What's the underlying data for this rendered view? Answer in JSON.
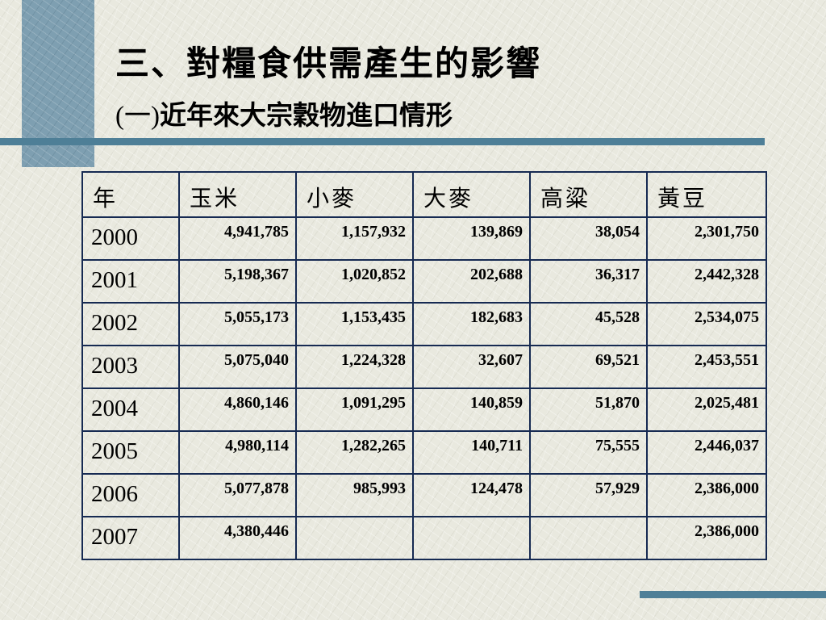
{
  "slide": {
    "title": "三、對糧食供需產生的影響",
    "subtitle_paren": "(一)",
    "subtitle_text": "近年來大宗穀物進口情形"
  },
  "table": {
    "headers": [
      "年",
      "玉米",
      "小麥",
      "大麥",
      "高粱",
      "黃豆"
    ],
    "rows": [
      {
        "year": "2000",
        "values": [
          "4,941,785",
          "1,157,932",
          "139,869",
          "38,054",
          "2,301,750"
        ]
      },
      {
        "year": "2001",
        "values": [
          "5,198,367",
          "1,020,852",
          "202,688",
          "36,317",
          "2,442,328"
        ]
      },
      {
        "year": "2002",
        "values": [
          "5,055,173",
          "1,153,435",
          "182,683",
          "45,528",
          "2,534,075"
        ]
      },
      {
        "year": "2003",
        "values": [
          "5,075,040",
          "1,224,328",
          "32,607",
          "69,521",
          "2,453,551"
        ]
      },
      {
        "year": "2004",
        "values": [
          "4,860,146",
          "1,091,295",
          "140,859",
          "51,870",
          "2,025,481"
        ]
      },
      {
        "year": "2005",
        "values": [
          "4,980,114",
          "1,282,265",
          "140,711",
          "75,555",
          "2,446,037"
        ]
      },
      {
        "year": "2006",
        "values": [
          "5,077,878",
          "985,993",
          "124,478",
          "57,929",
          "2,386,000"
        ]
      },
      {
        "year": "2007",
        "values": [
          "4,380,446",
          "",
          "",
          "",
          "2,386,000"
        ]
      }
    ]
  },
  "colors": {
    "accent_bar": "#4e7f97",
    "accent_square": "#7e9fb1",
    "table_border": "#162a52",
    "background": "#e9e9df"
  }
}
